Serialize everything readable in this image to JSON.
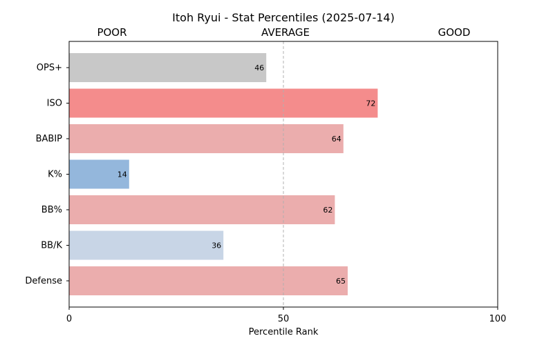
{
  "chart_data": {
    "type": "bar",
    "orientation": "horizontal",
    "title": "Itoh Ryui - Stat Percentiles (2025-07-14)",
    "xlabel": "Percentile Rank",
    "ylabel": "",
    "xlim": [
      0,
      100
    ],
    "xticks": [
      0,
      50,
      100
    ],
    "reference_line": 50,
    "zone_labels": [
      "POOR",
      "AVERAGE",
      "GOOD"
    ],
    "grid": false,
    "categories": [
      "OPS+",
      "ISO",
      "BABIP",
      "K%",
      "BB%",
      "BB/K",
      "Defense"
    ],
    "values": [
      46,
      72,
      64,
      14,
      62,
      36,
      65
    ],
    "colors": [
      "#c8c8c8",
      "#f48c8c",
      "#ebadad",
      "#94b7dc",
      "#ebadad",
      "#c8d5e6",
      "#ebadad"
    ]
  }
}
